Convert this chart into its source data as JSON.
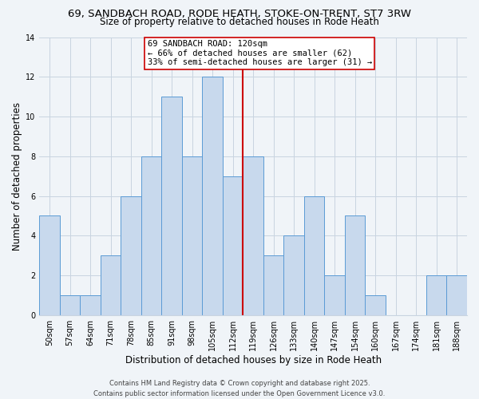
{
  "title": "69, SANDBACH ROAD, RODE HEATH, STOKE-ON-TRENT, ST7 3RW",
  "subtitle": "Size of property relative to detached houses in Rode Heath",
  "xlabel": "Distribution of detached houses by size in Rode Heath",
  "ylabel": "Number of detached properties",
  "categories": [
    "50sqm",
    "57sqm",
    "64sqm",
    "71sqm",
    "78sqm",
    "85sqm",
    "91sqm",
    "98sqm",
    "105sqm",
    "112sqm",
    "119sqm",
    "126sqm",
    "133sqm",
    "140sqm",
    "147sqm",
    "154sqm",
    "160sqm",
    "167sqm",
    "174sqm",
    "181sqm",
    "188sqm"
  ],
  "values": [
    5,
    1,
    1,
    3,
    6,
    8,
    11,
    8,
    12,
    7,
    8,
    3,
    4,
    6,
    2,
    5,
    1,
    0,
    0,
    2,
    2
  ],
  "bar_color": "#c8d9ed",
  "bar_edge_color": "#5b9bd5",
  "vline_x": 9.5,
  "vline_color": "#cc0000",
  "ylim": [
    0,
    14
  ],
  "yticks": [
    0,
    2,
    4,
    6,
    8,
    10,
    12,
    14
  ],
  "annotation_title": "69 SANDBACH ROAD: 120sqm",
  "annotation_line1": "← 66% of detached houses are smaller (62)",
  "annotation_line2": "33% of semi-detached houses are larger (31) →",
  "annotation_box_color": "#ffffff",
  "annotation_box_edge_color": "#cc0000",
  "footer_line1": "Contains HM Land Registry data © Crown copyright and database right 2025.",
  "footer_line2": "Contains public sector information licensed under the Open Government Licence v3.0.",
  "background_color": "#f0f4f8",
  "grid_color": "#c8d4e0",
  "title_fontsize": 9.5,
  "subtitle_fontsize": 8.5,
  "axis_label_fontsize": 8.5,
  "tick_fontsize": 7,
  "annotation_fontsize": 7.5,
  "footer_fontsize": 6
}
